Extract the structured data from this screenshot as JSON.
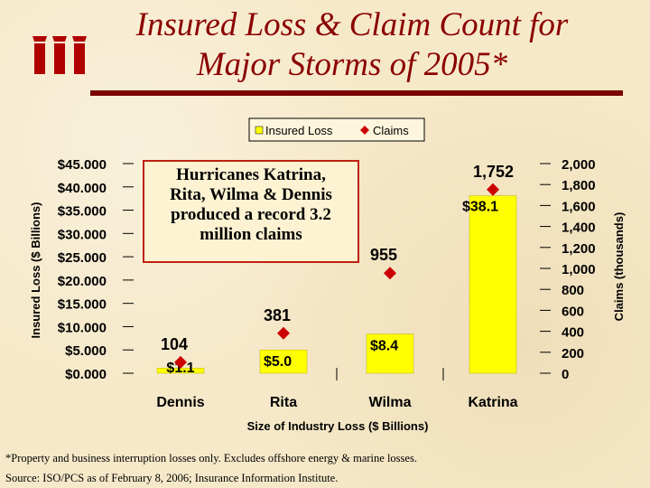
{
  "slide": {
    "title_line1": "Insured Loss & Claim Count for",
    "title_line2": "Major Storms of 2005*",
    "footnote1": "*Property and business interruption losses only.  Excludes offshore energy & marine losses.",
    "footnote2": "Source: ISO/PCS as of February 8, 2006; Insurance Information Institute.",
    "colors": {
      "title": "#8b0000",
      "bar": "#ffff00",
      "marker": "#cc0000",
      "annotation_border": "#c02010"
    }
  },
  "chart_data": {
    "type": "bar",
    "categories": [
      "Dennis",
      "Rita",
      "Wilma",
      "Katrina"
    ],
    "series": [
      {
        "name": "Insured Loss",
        "kind": "bar",
        "axis": "left",
        "values": [
          1.1,
          5.0,
          8.4,
          38.1
        ],
        "labels": [
          "$1.1",
          "$5.0",
          "$8.4",
          "$38.1"
        ]
      },
      {
        "name": "Claims",
        "kind": "marker",
        "axis": "right",
        "values": [
          104,
          381,
          955,
          1752
        ],
        "labels": [
          "104",
          "381",
          "955",
          "1,752"
        ]
      }
    ],
    "xlabel": "Size of Industry Loss ($ Billions)",
    "ylabel": "Insured Loss ($ Billions)",
    "y2label": "Claims (thousands)",
    "ylim": [
      0,
      45
    ],
    "y2lim": [
      0,
      2000
    ],
    "yticks": [
      "$0.000",
      "$5.000",
      "$10.000",
      "$15.000",
      "$20.000",
      "$25.000",
      "$30.000",
      "$35.000",
      "$40.000",
      "$45.000"
    ],
    "y2ticks": [
      "0",
      "200",
      "400",
      "600",
      "800",
      "1,000",
      "1,200",
      "1,400",
      "1,600",
      "1,800",
      "2,000"
    ],
    "legend_position": "top",
    "annotation": {
      "line1": "Hurricanes Katrina,",
      "line2": "Rita, Wilma & Dennis",
      "line3": "produced a record 3.2",
      "line4": "million claims"
    }
  }
}
